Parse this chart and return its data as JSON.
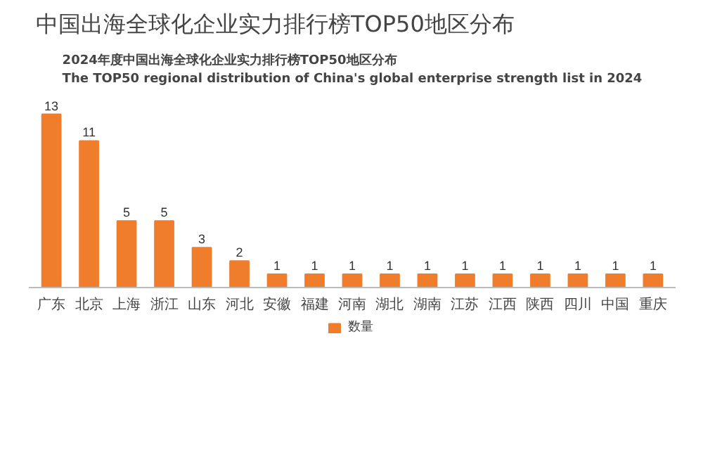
{
  "chart_data": {
    "type": "bar",
    "title": "中国出海全球化企业实力排行榜TOP50地区分布",
    "subtitle": "2024年度中国出海全球化企业实力排行榜TOP50地区分布\nThe TOP50 regional distribution of China's global enterprise strength list in 2024",
    "categories": [
      "广东",
      "北京",
      "上海",
      "浙江",
      "山东",
      "河北",
      "安徽",
      "福建",
      "河南",
      "湖北",
      "湖南",
      "江苏",
      "江西",
      "陕西",
      "四川",
      "中国",
      "重庆"
    ],
    "series": [
      {
        "name": "数量",
        "color": "#ef7d2c",
        "values": [
          13,
          11,
          5,
          5,
          3,
          2,
          1,
          1,
          1,
          1,
          1,
          1,
          1,
          1,
          1,
          1,
          1
        ]
      }
    ],
    "data_labels": true,
    "legend": "bottom",
    "grid": false
  }
}
